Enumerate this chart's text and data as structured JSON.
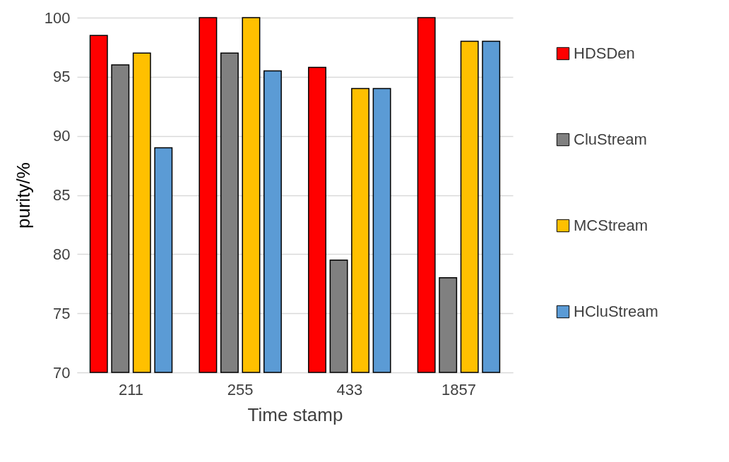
{
  "chart_data": {
    "type": "bar",
    "xlabel": "Time stamp",
    "ylabel": "purity/%",
    "categories": [
      "211",
      "255",
      "433",
      "1857"
    ],
    "series": [
      {
        "name": "HDSDen",
        "color": "#ff0000",
        "values": [
          98.5,
          100,
          95.8,
          100
        ]
      },
      {
        "name": "CluStream",
        "color": "#808080",
        "values": [
          96,
          97,
          79.5,
          78
        ]
      },
      {
        "name": "MCStream",
        "color": "#ffc000",
        "values": [
          97,
          100,
          94,
          98
        ]
      },
      {
        "name": "HCluStream",
        "color": "#5b9bd5",
        "values": [
          89,
          95.5,
          94,
          98
        ]
      }
    ],
    "ylim": [
      70,
      100
    ],
    "yticks": [
      70,
      75,
      80,
      85,
      90,
      95,
      100
    ],
    "grid": "y",
    "legend": "right"
  }
}
